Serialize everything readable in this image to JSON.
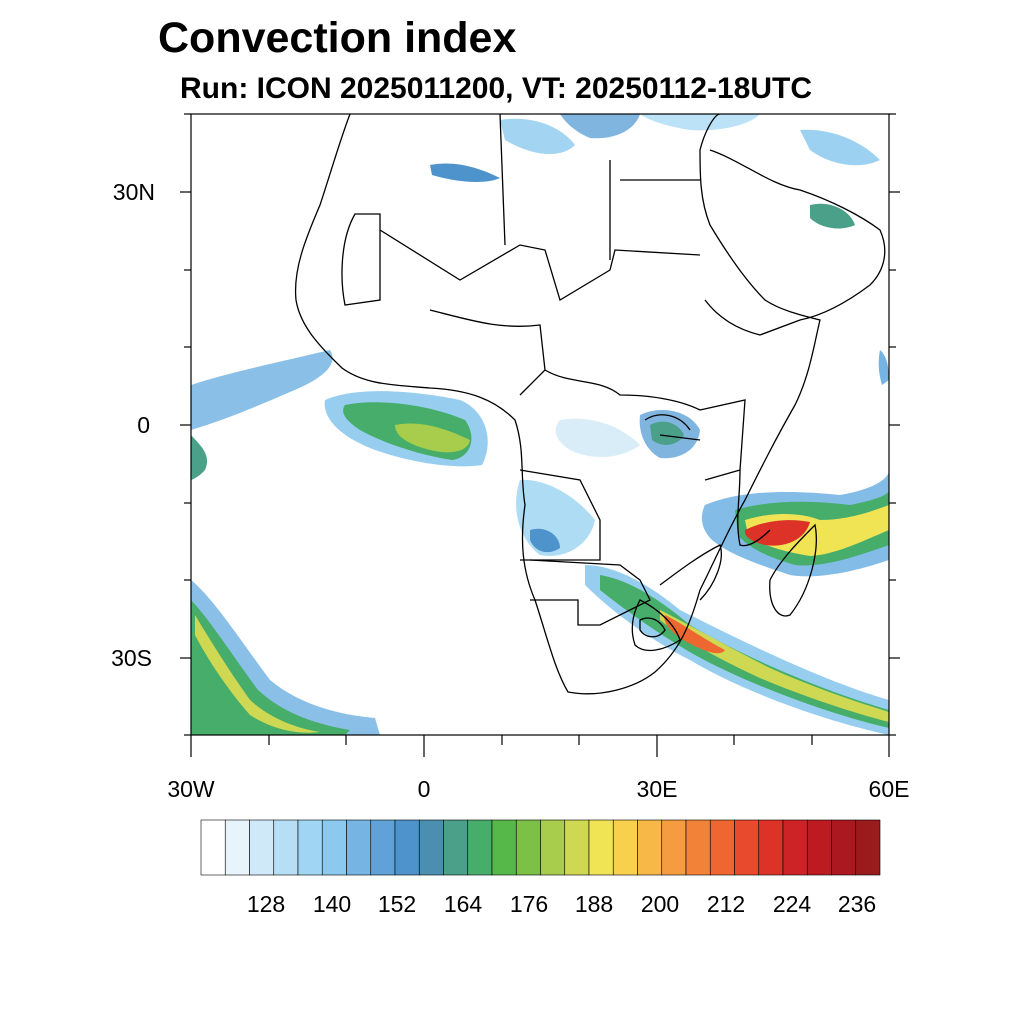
{
  "title": "Convection index",
  "subtitle": "Run: ICON 2025011200,  VT: 20250112-18UTC",
  "map": {
    "region": "Africa",
    "lon_range": [
      -30,
      60
    ],
    "lat_range": [
      -40,
      40
    ],
    "lat_labels": [
      "30N",
      "0",
      "30S"
    ],
    "lon_labels": [
      "30W",
      "0",
      "30E",
      "60E"
    ]
  },
  "colorbar": {
    "labels": [
      "128",
      "140",
      "152",
      "164",
      "176",
      "188",
      "200",
      "212",
      "224",
      "236"
    ],
    "colors": [
      "#ffffff",
      "#e8f4fc",
      "#cfe9f8",
      "#b6def5",
      "#a0d6f3",
      "#8cc9ee",
      "#76b5e3",
      "#60a2d8",
      "#4f93cc",
      "#4a8fb0",
      "#4aa088",
      "#46ad6a",
      "#55b848",
      "#7cc045",
      "#a8cc4c",
      "#cfd852",
      "#f0e455",
      "#f8d04e",
      "#f8b848",
      "#f69c40",
      "#f28238",
      "#ee6630",
      "#e74a2c",
      "#dc3228",
      "#cd2226",
      "#bd1a22",
      "#ac1820",
      "#9b1a1c"
    ]
  }
}
